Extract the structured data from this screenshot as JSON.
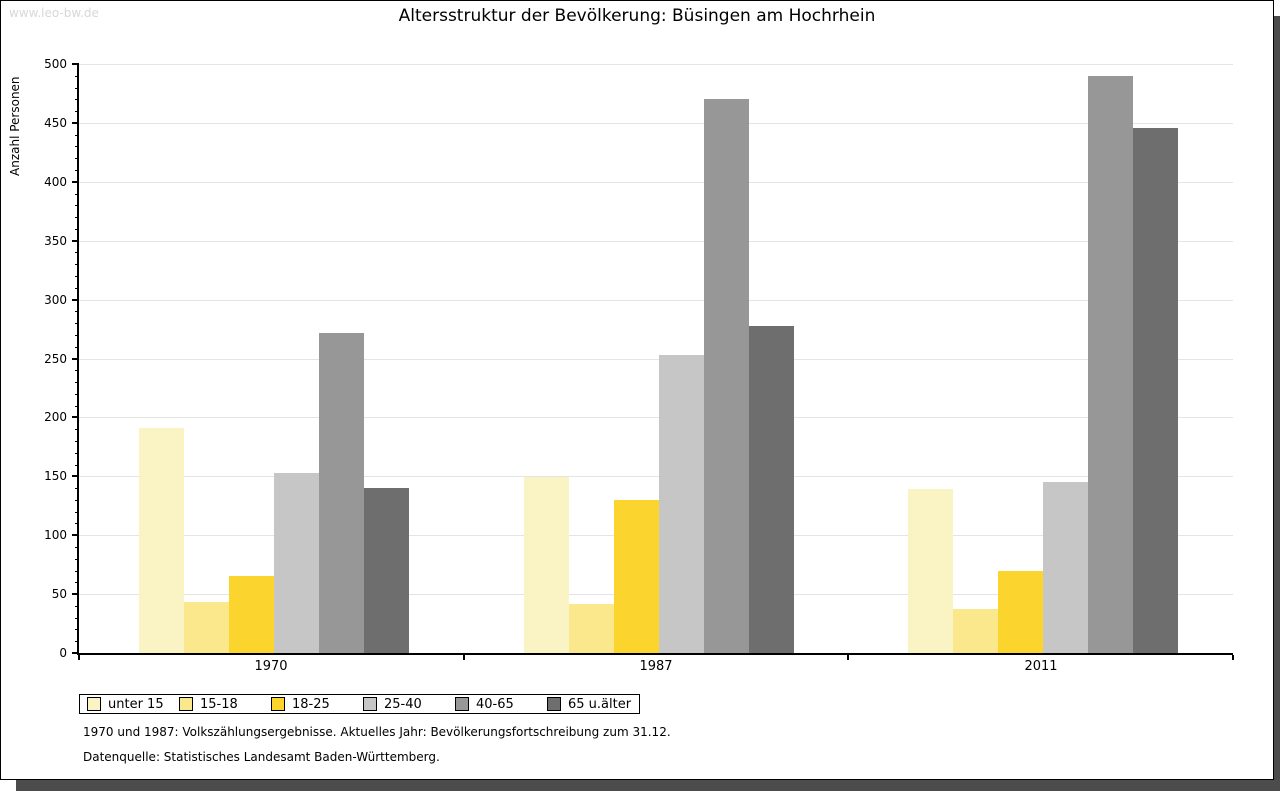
{
  "watermark": "www.leo-bw.de",
  "chart_data": {
    "type": "bar",
    "title": "Altersstruktur der Bevölkerung: Büsingen am Hochrhein",
    "ylabel": "Anzahl Personen",
    "xlabel": "",
    "ylim": [
      0,
      500
    ],
    "ytick_step": 50,
    "yminor_step": 10,
    "yticks": [
      0,
      50,
      100,
      150,
      200,
      250,
      300,
      350,
      400,
      450,
      500
    ],
    "grid": "horizontal-light-gray",
    "legend_position": "bottom-left-boxed",
    "categories": [
      "1970",
      "1987",
      "2011"
    ],
    "series": [
      {
        "name": "unter 15",
        "color": "#faf3c3",
        "values": [
          191,
          149,
          139
        ]
      },
      {
        "name": "15-18",
        "color": "#fbe88d",
        "values": [
          43,
          42,
          37
        ]
      },
      {
        "name": "18-25",
        "color": "#fbd52d",
        "values": [
          65,
          130,
          70
        ]
      },
      {
        "name": "25-40",
        "color": "#c6c6c6",
        "values": [
          153,
          253,
          145
        ]
      },
      {
        "name": "40-65",
        "color": "#979797",
        "values": [
          272,
          470,
          490
        ]
      },
      {
        "name": "65 u.älter",
        "color": "#6e6e6e",
        "values": [
          140,
          278,
          446
        ]
      }
    ]
  },
  "footer": {
    "line1": "1970 und 1987: Volkszählungsergebnisse. Aktuelles Jahr: Bevölkerungsfortschreibung zum 31.12.",
    "line2": "Datenquelle: Statistisches Landesamt Baden-Württemberg."
  }
}
